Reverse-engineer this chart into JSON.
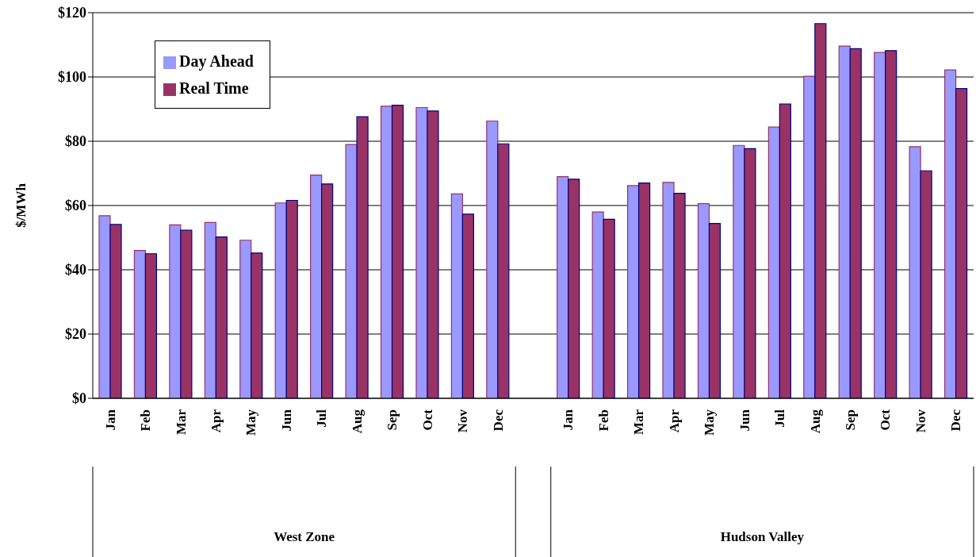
{
  "chart_data": {
    "type": "bar",
    "ylabel": "$/MWh",
    "categories": [
      "Jan",
      "Feb",
      "Mar",
      "Apr",
      "May",
      "Jun",
      "Jul",
      "Aug",
      "Sep",
      "Oct",
      "Nov",
      "Dec",
      null,
      "Jan",
      "Feb",
      "Mar",
      "Apr",
      "May",
      "Jun",
      "Jul",
      "Aug",
      "Sep",
      "Oct",
      "Nov",
      "Dec"
    ],
    "series": [
      {
        "name": "Day Ahead",
        "color": "#9999ff",
        "values": [
          56.8,
          46,
          54,
          54.7,
          49.2,
          60.8,
          69.5,
          79,
          90.9,
          90.5,
          63.6,
          86.3,
          null,
          69,
          58,
          66.2,
          67.2,
          60.6,
          78.7,
          84.4,
          100.2,
          109.6,
          107.6,
          78.3,
          102.2
        ]
      },
      {
        "name": "Real Time",
        "color": "#993366",
        "values": [
          54.1,
          45,
          52.3,
          50.2,
          45.2,
          61.6,
          66.7,
          87.6,
          91.2,
          89.4,
          57.3,
          79.2,
          null,
          68.2,
          55.7,
          67,
          63.8,
          54.4,
          77.7,
          91.6,
          116.6,
          108.8,
          108.2,
          70.8,
          96.4
        ]
      }
    ],
    "ylim": [
      0,
      120
    ],
    "yticks": [
      {
        "value": 0,
        "label": "$0"
      },
      {
        "value": 20,
        "label": "$20"
      },
      {
        "value": 40,
        "label": "$40"
      },
      {
        "value": 60,
        "label": "$60"
      },
      {
        "value": 80,
        "label": "$80"
      },
      {
        "value": 100,
        "label": "$100"
      },
      {
        "value": 120,
        "label": "$120"
      }
    ],
    "grid": "y",
    "legend": "top left",
    "annotations": [
      "West Zone",
      "Hudson Valley"
    ]
  }
}
